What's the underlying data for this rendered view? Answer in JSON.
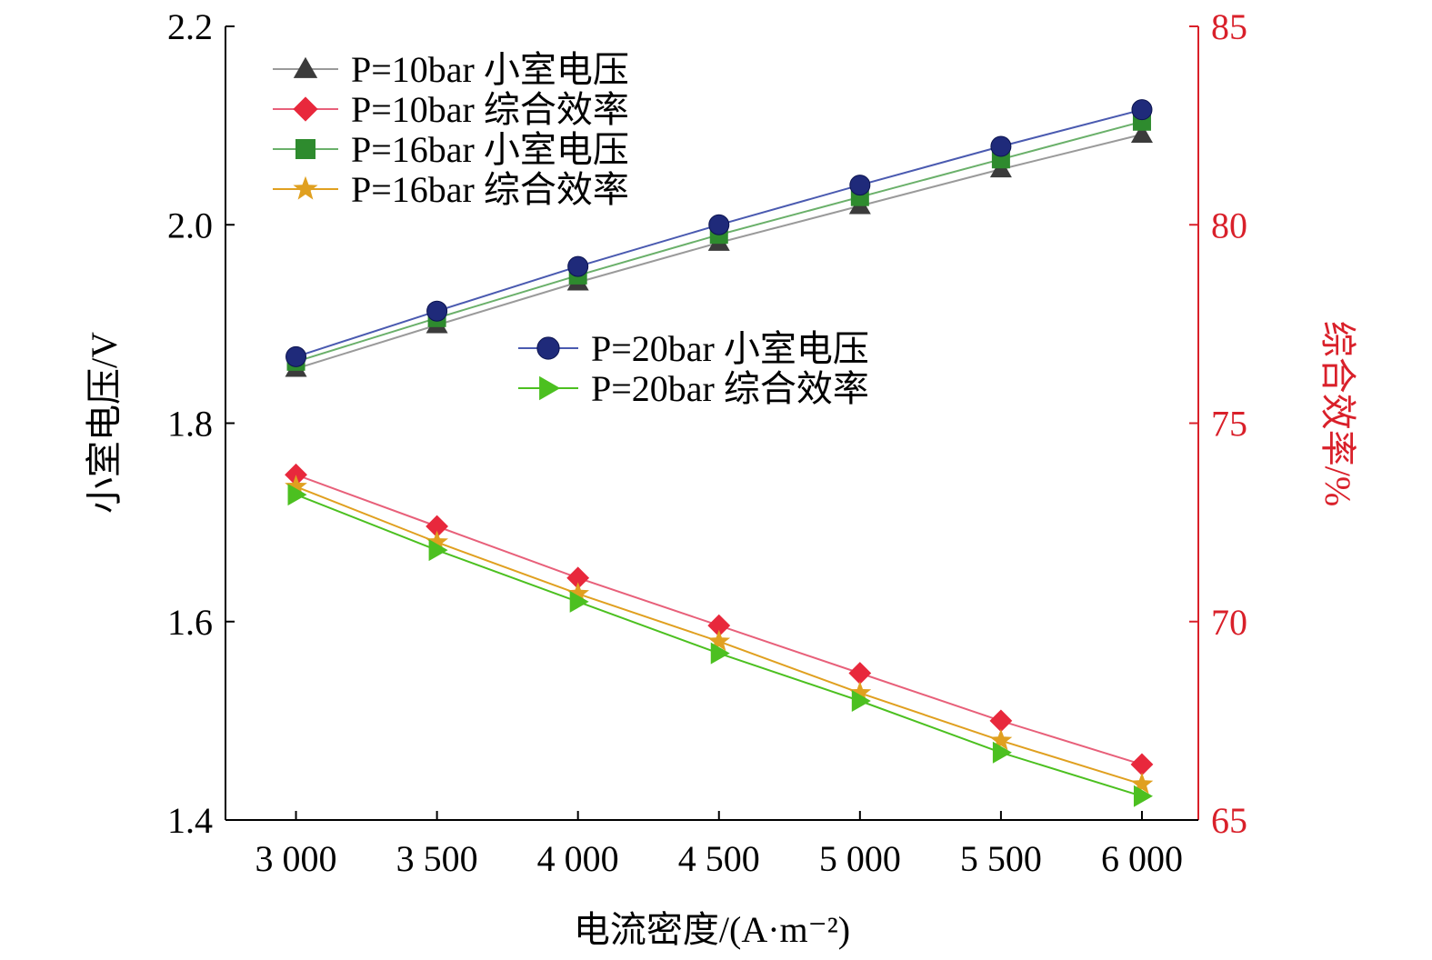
{
  "chart_data": {
    "type": "line",
    "x": [
      3000,
      3500,
      4000,
      4500,
      5000,
      5500,
      6000
    ],
    "x_tick_labels": [
      "3 000",
      "3 500",
      "4 000",
      "4 500",
      "5 000",
      "5 500",
      "6 000"
    ],
    "xlabel": "电流密度/(A·m⁻²)",
    "xlim": [
      2750,
      6200
    ],
    "ylabel_left": "小室电压/V",
    "ylim_left": [
      1.4,
      2.2
    ],
    "yticks_left": [
      "1.4",
      "1.6",
      "1.8",
      "2.0",
      "2.2"
    ],
    "ylabel_right": "综合效率/%",
    "ylim_right": [
      65,
      85
    ],
    "yticks_right": [
      "65",
      "70",
      "75",
      "80",
      "85"
    ],
    "legend_placement": "top-left and center",
    "colors": {
      "axis_left": "#000000",
      "axis_right": "#d9202a",
      "p10_voltage": "#3b3b3b",
      "p10_eff": "#e8283c",
      "p16_voltage": "#2e8b2e",
      "p16_eff": "#e0a020",
      "p20_voltage": "#1f2a7a",
      "p20_eff": "#4cc020"
    },
    "series": [
      {
        "name": "P=10bar 小室电压",
        "axis": "left",
        "marker": "triangle",
        "line_color": "#9a9a9a",
        "marker_color": "#3b3b3b",
        "values": [
          1.855,
          1.899,
          1.942,
          1.982,
          2.019,
          2.056,
          2.091
        ]
      },
      {
        "name": "P=10bar 综合效率",
        "axis": "right",
        "marker": "diamond",
        "line_color": "#e8607a",
        "marker_color": "#e8283c",
        "values": [
          73.7,
          72.4,
          71.1,
          69.9,
          68.7,
          67.5,
          66.4
        ]
      },
      {
        "name": "P=16bar 小室电压",
        "axis": "left",
        "marker": "square",
        "line_color": "#6ab06a",
        "marker_color": "#2e8b2e",
        "values": [
          1.862,
          1.906,
          1.949,
          1.99,
          2.028,
          2.066,
          2.104
        ]
      },
      {
        "name": "P=16bar 综合效率",
        "axis": "right",
        "marker": "star",
        "line_color": "#e0a020",
        "marker_color": "#e0a020",
        "values": [
          73.4,
          72.0,
          70.7,
          69.5,
          68.2,
          67.0,
          65.9
        ]
      },
      {
        "name": "P=20bar 小室电压",
        "axis": "left",
        "marker": "circle",
        "line_color": "#4a5ab0",
        "marker_color": "#1f2a7a",
        "values": [
          1.867,
          1.913,
          1.958,
          2.0,
          2.04,
          2.079,
          2.116
        ]
      },
      {
        "name": "P=20bar 综合效率",
        "axis": "right",
        "marker": "triangle-right",
        "line_color": "#4cc020",
        "marker_color": "#4cc020",
        "values": [
          73.2,
          71.8,
          70.5,
          69.2,
          68.0,
          66.7,
          65.6
        ]
      }
    ]
  }
}
